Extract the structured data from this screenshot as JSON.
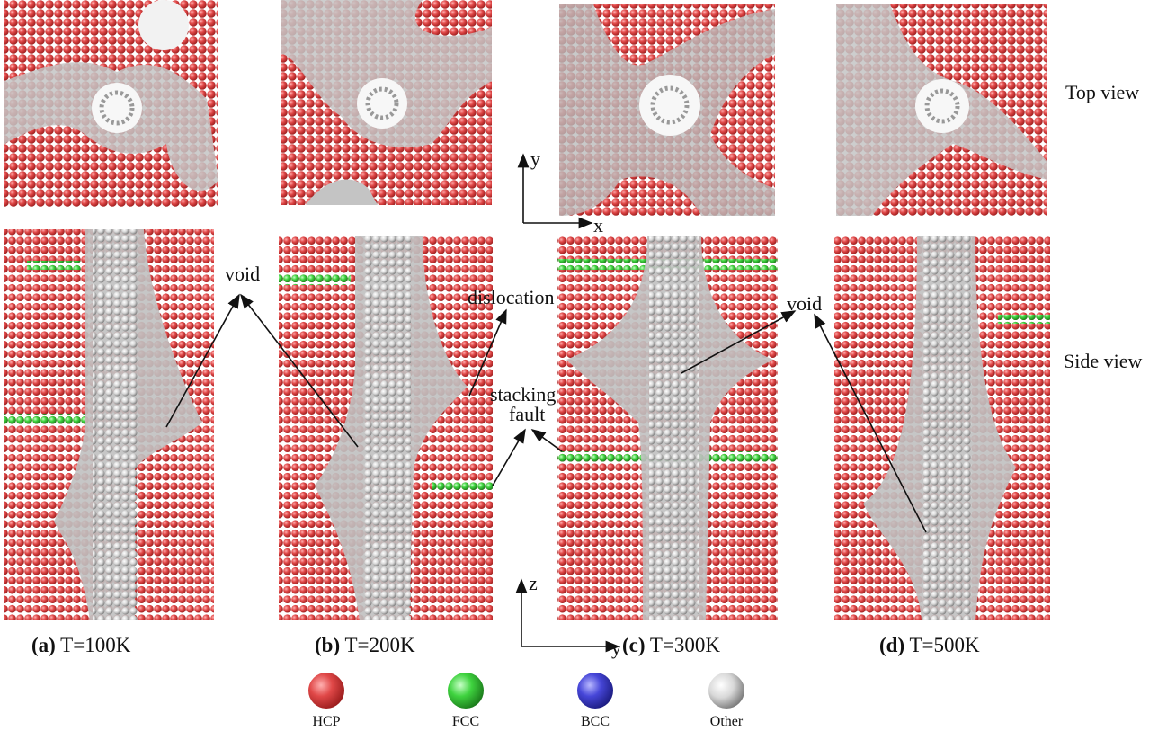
{
  "views": {
    "top": "Top view",
    "side": "Side view"
  },
  "panels": [
    {
      "label": "(a)",
      "temperature": "T=100K"
    },
    {
      "label": "(b)",
      "temperature": "T=200K"
    },
    {
      "label": "(c)",
      "temperature": "T=300K"
    },
    {
      "label": "(d)",
      "temperature": "T=500K"
    }
  ],
  "annotations": {
    "void_left": "void",
    "dislocation": "dislocation",
    "stacking": "stacking",
    "fault": "fault",
    "void_right": "void"
  },
  "axes": {
    "top_vertical": "y",
    "top_horizontal": "x",
    "side_vertical": "z",
    "side_horizontal": "y"
  },
  "legend": [
    "HCP",
    "FCC",
    "BCC",
    "Other"
  ]
}
